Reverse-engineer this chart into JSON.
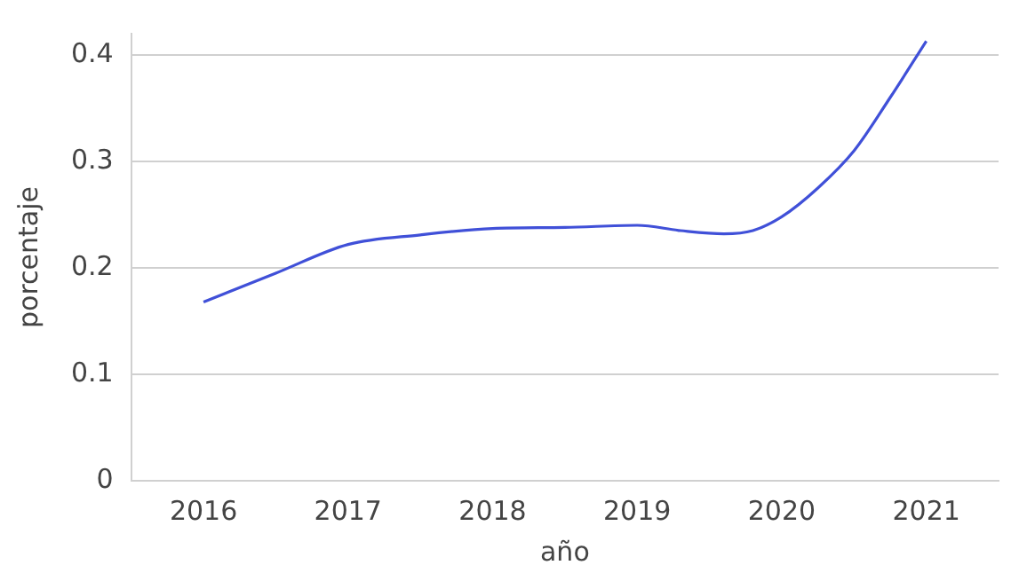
{
  "chart_data": {
    "type": "line",
    "xlabel": "año",
    "ylabel": "porcentaje",
    "x": [
      2016,
      2016.5,
      2017,
      2017.5,
      2018,
      2018.5,
      2019,
      2019.3,
      2019.6,
      2019.8,
      2020,
      2020.25,
      2020.5,
      2020.75,
      2021
    ],
    "series": [
      {
        "color": "#4050d8",
        "values": [
          0.168,
          0.195,
          0.222,
          0.231,
          0.237,
          0.238,
          0.24,
          0.235,
          0.232,
          0.235,
          0.248,
          0.275,
          0.31,
          0.36,
          0.413
        ]
      }
    ],
    "xlim": [
      2015.5,
      2021.5
    ],
    "xticks": [
      2016,
      2017,
      2018,
      2019,
      2020,
      2021
    ],
    "ylim": [
      0,
      0.42
    ],
    "yticks": [
      0,
      0.1,
      0.2,
      0.3,
      0.4
    ],
    "grid": "y",
    "legend": false,
    "marker": "none",
    "line_style": "solid"
  }
}
